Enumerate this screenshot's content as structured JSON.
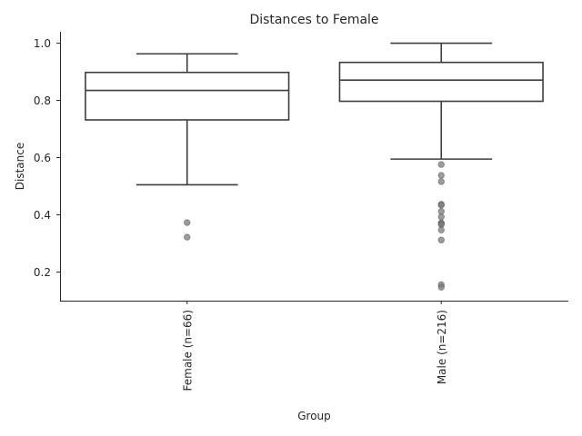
{
  "chart_data": {
    "type": "box",
    "title": "Distances to Female",
    "xlabel": "Group",
    "ylabel": "Distance",
    "ylim": [
      0.1,
      1.04
    ],
    "yticks": [
      0.2,
      0.4,
      0.6,
      0.8,
      1.0
    ],
    "ytick_labels": [
      "0.2",
      "0.4",
      "0.6",
      "0.8",
      "1.0"
    ],
    "grid": false,
    "categories": [
      "Female (n=66)",
      "Male (n=216)"
    ],
    "boxes": [
      {
        "name": "Female (n=66)",
        "whisker_low": 0.505,
        "q1": 0.732,
        "median": 0.835,
        "q3": 0.898,
        "whisker_high": 0.963,
        "outliers": [
          0.373,
          0.322
        ]
      },
      {
        "name": "Male (n=216)",
        "whisker_low": 0.595,
        "q1": 0.797,
        "median": 0.871,
        "q3": 0.933,
        "whisker_high": 1.0,
        "outliers": [
          0.576,
          0.538,
          0.516,
          0.437,
          0.434,
          0.412,
          0.393,
          0.372,
          0.369,
          0.366,
          0.347,
          0.312,
          0.156,
          0.147
        ]
      }
    ],
    "colors": {
      "box_edge": "#3d3d3d",
      "outlier": "#7a7a7a"
    }
  }
}
